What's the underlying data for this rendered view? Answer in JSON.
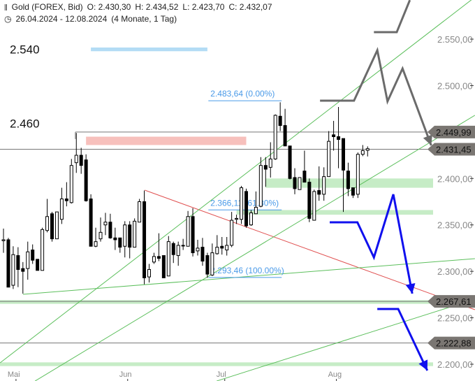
{
  "header": {
    "instrument": "Gold (FOREX, Bid)",
    "open": "O: 2.430,30",
    "high": "H: 2.434,52",
    "low": "L: 2.423,70",
    "close": "C: 2.432,07",
    "range": "26.04.2024 - 12.08.2024",
    "period": "(4 Monate, 1 Tag)",
    "icons": [
      "candlestick-icon",
      "clock-icon"
    ]
  },
  "chart_data": {
    "type": "candlestick",
    "ylim": [
      2185,
      2592
    ],
    "y_ticks": [
      {
        "v": 2550,
        "label": "2.550,00"
      },
      {
        "v": 2500,
        "label": "2.500,00"
      },
      {
        "v": 2400,
        "label": "2.400,00"
      },
      {
        "v": 2350,
        "label": "2.350,00"
      },
      {
        "v": 2300,
        "label": "2.300,00"
      },
      {
        "v": 2250,
        "label": "2.250,00"
      },
      {
        "v": 2200,
        "label": "2.200,00"
      }
    ],
    "x_ticks": [
      {
        "i": 2,
        "label": "Mai"
      },
      {
        "i": 25,
        "label": "Jun"
      },
      {
        "i": 45,
        "label": "Jul"
      },
      {
        "i": 68,
        "label": "Aug"
      }
    ],
    "candles": [
      [
        2333,
        2346,
        2320,
        2334
      ],
      [
        2334,
        2336,
        2283,
        2283
      ],
      [
        2285,
        2327,
        2281,
        2318
      ],
      [
        2317,
        2326,
        2283,
        2302
      ],
      [
        2303,
        2310,
        2276,
        2300
      ],
      [
        2303,
        2332,
        2291,
        2321
      ],
      [
        2323,
        2329,
        2308,
        2312
      ],
      [
        2313,
        2313,
        2301,
        2301
      ],
      [
        2301,
        2347,
        2301,
        2345
      ],
      [
        2344,
        2378,
        2342,
        2359
      ],
      [
        2362,
        2364,
        2332,
        2335
      ],
      [
        2335,
        2364,
        2335,
        2364
      ],
      [
        2356,
        2390,
        2351,
        2378
      ],
      [
        2378,
        2396,
        2370,
        2376
      ],
      [
        2374,
        2421,
        2373,
        2414
      ],
      [
        2417,
        2449,
        2406,
        2425
      ],
      [
        2425,
        2433,
        2405,
        2414
      ],
      [
        2420,
        2426,
        2375,
        2376
      ],
      [
        2378,
        2383,
        2327,
        2327
      ],
      [
        2327,
        2347,
        2326,
        2332
      ],
      [
        2335,
        2358,
        2332,
        2342
      ],
      [
        2350,
        2363,
        2339,
        2353
      ],
      [
        2353,
        2362,
        2335,
        2336
      ],
      [
        2336,
        2347,
        2323,
        2334
      ],
      [
        2336,
        2336,
        2320,
        2326
      ],
      [
        2327,
        2354,
        2315,
        2350
      ],
      [
        2350,
        2354,
        2314,
        2326
      ],
      [
        2326,
        2357,
        2326,
        2354
      ],
      [
        2353,
        2378,
        2353,
        2375
      ],
      [
        2375,
        2387,
        2286,
        2293
      ],
      [
        2294,
        2308,
        2288,
        2302
      ],
      [
        2310,
        2320,
        2308,
        2316
      ],
      [
        2316,
        2341,
        2311,
        2314
      ],
      [
        2317,
        2317,
        2293,
        2293
      ],
      [
        2295,
        2338,
        2295,
        2332
      ],
      [
        2330,
        2332,
        2309,
        2318
      ],
      [
        2317,
        2332,
        2306,
        2328
      ],
      [
        2328,
        2335,
        2323,
        2328
      ],
      [
        2327,
        2365,
        2327,
        2359
      ],
      [
        2359,
        2368,
        2316,
        2320
      ],
      [
        2322,
        2334,
        2317,
        2325
      ],
      [
        2326,
        2336,
        2306,
        2311
      ],
      [
        2317,
        2320,
        2293,
        2297
      ],
      [
        2296,
        2330,
        2295,
        2320
      ],
      [
        2319,
        2339,
        2318,
        2326
      ],
      [
        2327,
        2337,
        2318,
        2325
      ],
      [
        2323,
        2337,
        2317,
        2328
      ],
      [
        2328,
        2364,
        2326,
        2355
      ],
      [
        2356,
        2361,
        2351,
        2357
      ],
      [
        2356,
        2392,
        2351,
        2390
      ],
      [
        2386,
        2389,
        2347,
        2349
      ],
      [
        2350,
        2366,
        2349,
        2363
      ],
      [
        2362,
        2386,
        2362,
        2369
      ],
      [
        2370,
        2423,
        2369,
        2414
      ],
      [
        2414,
        2423,
        2391,
        2410
      ],
      [
        2412,
        2439,
        2401,
        2421
      ],
      [
        2421,
        2469,
        2420,
        2468
      ],
      [
        2467,
        2482,
        2451,
        2457
      ],
      [
        2457,
        2475,
        2435,
        2435
      ],
      [
        2435,
        2435,
        2399,
        2400
      ],
      [
        2401,
        2411,
        2383,
        2389
      ],
      [
        2388,
        2401,
        2388,
        2401
      ],
      [
        2408,
        2430,
        2396,
        2396
      ],
      [
        2396,
        2400,
        2353,
        2357
      ],
      [
        2355,
        2388,
        2355,
        2386
      ],
      [
        2387,
        2413,
        2376,
        2383
      ],
      [
        2383,
        2412,
        2376,
        2402
      ],
      [
        2402,
        2451,
        2402,
        2440
      ],
      [
        2447,
        2462,
        2430,
        2445
      ],
      [
        2445,
        2477,
        2411,
        2442
      ],
      [
        2443,
        2443,
        2364,
        2409
      ],
      [
        2408,
        2417,
        2381,
        2389
      ],
      [
        2390,
        2390,
        2379,
        2382
      ],
      [
        2383,
        2428,
        2379,
        2426
      ],
      [
        2426,
        2436,
        2424,
        2430
      ],
      [
        2430.3,
        2434.52,
        2423.7,
        2432.07
      ]
    ],
    "price_labels": [
      {
        "v": 2449.99,
        "label": "2.449,99"
      },
      {
        "v": 2431.45,
        "label": "2.431,45"
      },
      {
        "v": 2267.61,
        "label": "2.267,61"
      },
      {
        "v": 2222.88,
        "label": "2.222,88"
      }
    ],
    "left_labels": [
      {
        "v": 2540,
        "label": "2.540"
      },
      {
        "v": 2460,
        "label": "2.460"
      }
    ],
    "fibonacci": [
      {
        "v": 2483.64,
        "label": "2.483,64 (0.00%)"
      },
      {
        "v": 2366.11,
        "label": "2.366,11 (61.80%)"
      },
      {
        "v": 2293.46,
        "label": "2.293,46 (100.00%)"
      }
    ],
    "zones": [
      {
        "from": 2541,
        "to": 2537,
        "i0": 18,
        "color": "#b3dcf5",
        "i1": 42
      },
      {
        "from": 2445,
        "to": 2436,
        "i0": 17,
        "color": "#f7c0bc",
        "i1": 50
      },
      {
        "from": 2400,
        "to": 2390,
        "i0": 54,
        "color": "#c6ecc6"
      },
      {
        "from": 2366,
        "to": 2361,
        "i0": 48,
        "color": "#c6ecc6"
      },
      {
        "from": 2269,
        "to": 2265,
        "i0": -1,
        "color": "#c6ecc6"
      },
      {
        "from": 2202,
        "to": 2198,
        "i0": -1,
        "color": "#c6ecc6"
      }
    ],
    "trendlines": [
      {
        "color": "#e05050",
        "pts": [
          [
            29.1,
            2387.4
          ],
          [
            97.1,
            2258.7
          ]
        ]
      },
      {
        "color": "#5cbf5c",
        "pts": [
          [
            -0.7,
            2201.5
          ],
          [
            97.1,
            2595.2
          ]
        ]
      },
      {
        "color": "#5cbf5c",
        "pts": [
          [
            6.5,
            2181.9
          ],
          [
            97.1,
            2468
          ]
        ]
      },
      {
        "color": "#5cbf5c",
        "pts": [
          [
            43.9,
            2181.9
          ],
          [
            97.1,
            2270
          ]
        ]
      },
      {
        "color": "#5cbf5c",
        "pts": [
          [
            4.0,
            2275.3
          ],
          [
            97.1,
            2313.7
          ]
        ]
      }
    ],
    "projections": [
      {
        "color": "#6b6b6b",
        "arrow": true,
        "pts": [
          [
            65.2,
            2483.8
          ],
          [
            72.2,
            2483.8
          ],
          [
            77.0,
            2538
          ],
          [
            79.1,
            2483
          ],
          [
            82.2,
            2518.4
          ],
          [
            88.1,
            2435.6
          ]
        ]
      },
      {
        "color": "#6b6b6b",
        "arrow": false,
        "pts": [
          [
            76.3,
            2557.5
          ],
          [
            81.0,
            2557.5
          ],
          [
            83.7,
            2592
          ]
        ]
      },
      {
        "color": "#1010ee",
        "arrow": true,
        "pts": [
          [
            67.2,
            2352.8
          ],
          [
            72.9,
            2352.8
          ],
          [
            76.3,
            2315
          ],
          [
            80.3,
            2382.9
          ],
          [
            84.2,
            2276
          ]
        ]
      },
      {
        "color": "#1010ee",
        "arrow": true,
        "pts": [
          [
            77.0,
            2259.5
          ],
          [
            81.3,
            2259.5
          ],
          [
            87.3,
            2193.2
          ]
        ]
      }
    ]
  }
}
